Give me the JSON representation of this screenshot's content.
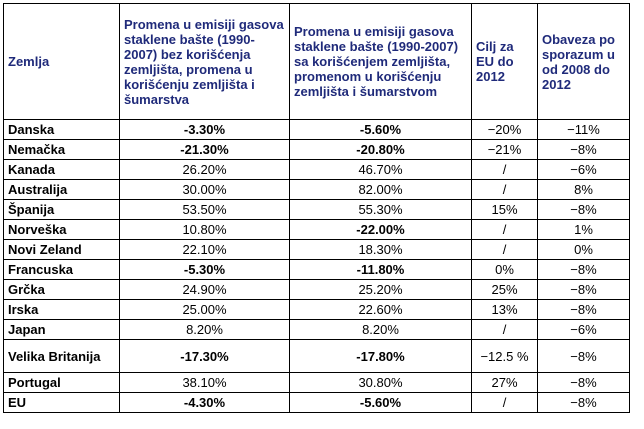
{
  "headers": [
    "Zemlja",
    "Promena u emisiji gasova staklene bašte (1990-2007) bez korišćenja zemljišta, promena u korišćenju zemljišta i šumarstva",
    "Promena u emisiji gasova staklene bašte (1990-2007) sa korišćenjem zemljišta, promenom u korišćenju zemljišta i šumarstvom",
    "Cilj za EU do 2012",
    "Obaveza po sporazum u od 2008 do 2012"
  ],
  "rows": [
    {
      "country": "Danska",
      "without": "-3.30%",
      "with": "-5.60%",
      "eu_target": "−20%",
      "obligation": "−11%",
      "bold_without": true,
      "bold_with": true
    },
    {
      "country": "Nemačka",
      "without": "-21.30%",
      "with": "-20.80%",
      "eu_target": "−21%",
      "obligation": "−8%",
      "bold_without": true,
      "bold_with": true
    },
    {
      "country": "Kanada",
      "without": "26.20%",
      "with": "46.70%",
      "eu_target": "/",
      "obligation": "−6%",
      "bold_without": false,
      "bold_with": false
    },
    {
      "country": "Australija",
      "without": "30.00%",
      "with": "82.00%",
      "eu_target": "/",
      "obligation": "8%",
      "bold_without": false,
      "bold_with": false
    },
    {
      "country": "Španija",
      "without": "53.50%",
      "with": "55.30%",
      "eu_target": "15%",
      "obligation": "−8%",
      "bold_without": false,
      "bold_with": false
    },
    {
      "country": "Norveška",
      "without": "10.80%",
      "with": "-22.00%",
      "eu_target": "/",
      "obligation": "1%",
      "bold_without": false,
      "bold_with": true
    },
    {
      "country": "Novi Zeland",
      "without": "22.10%",
      "with": "18.30%",
      "eu_target": "/",
      "obligation": "0%",
      "bold_without": false,
      "bold_with": false
    },
    {
      "country": "Francuska",
      "without": "-5.30%",
      "with": "-11.80%",
      "eu_target": "0%",
      "obligation": "−8%",
      "bold_without": true,
      "bold_with": true
    },
    {
      "country": "Grčka",
      "without": "24.90%",
      "with": "25.20%",
      "eu_target": "25%",
      "obligation": "−8%",
      "bold_without": false,
      "bold_with": false
    },
    {
      "country": "Irska",
      "without": "25.00%",
      "with": "22.60%",
      "eu_target": "13%",
      "obligation": "−8%",
      "bold_without": false,
      "bold_with": false
    },
    {
      "country": "Japan",
      "without": "8.20%",
      "with": "8.20%",
      "eu_target": "/",
      "obligation": "−6%",
      "bold_without": false,
      "bold_with": false
    },
    {
      "country": "Velika Britanija",
      "without": "-17.30%",
      "with": "-17.80%",
      "eu_target": "−12.5 %",
      "obligation": "−8%",
      "bold_without": true,
      "bold_with": true,
      "tall": true
    },
    {
      "country": "Portugal",
      "without": "38.10%",
      "with": "30.80%",
      "eu_target": "27%",
      "obligation": "−8%",
      "bold_without": false,
      "bold_with": false
    },
    {
      "country": "EU",
      "without": "-4.30%",
      "with": "-5.60%",
      "eu_target": "/",
      "obligation": "−8%",
      "bold_without": true,
      "bold_with": true
    }
  ],
  "colors": {
    "header_text": "#1f2a7a",
    "border": "#000000"
  }
}
